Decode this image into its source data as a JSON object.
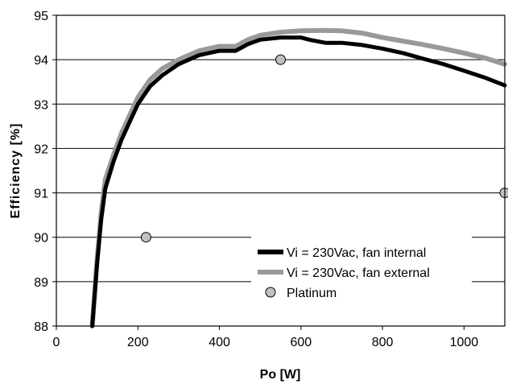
{
  "chart_data": {
    "type": "line",
    "xlabel": "Po [W]",
    "ylabel": "Efficiency [%]",
    "xlim": [
      0,
      1100
    ],
    "ylim": [
      88,
      95
    ],
    "xticks": [
      "0",
      "200",
      "400",
      "600",
      "800",
      "1000"
    ],
    "xtick_values": [
      0,
      200,
      400,
      600,
      800,
      1000
    ],
    "yticks": [
      "88",
      "89",
      "90",
      "91",
      "92",
      "93",
      "94",
      "95"
    ],
    "ytick_values": [
      88,
      89,
      90,
      91,
      92,
      93,
      94,
      95
    ],
    "grid": "horizontal",
    "legend_position": "bottom-right",
    "series": [
      {
        "name": "Vi = 230Vac, fan internal",
        "kind": "line",
        "color": "#000000",
        "x": [
          88,
          100,
          110,
          120,
          140,
          160,
          180,
          200,
          230,
          260,
          300,
          350,
          400,
          440,
          470,
          500,
          550,
          600,
          620,
          660,
          700,
          750,
          800,
          850,
          900,
          950,
          1000,
          1050,
          1100
        ],
        "y": [
          88.0,
          89.4,
          90.4,
          91.1,
          91.7,
          92.2,
          92.6,
          93.0,
          93.4,
          93.65,
          93.9,
          94.1,
          94.2,
          94.2,
          94.35,
          94.45,
          94.5,
          94.5,
          94.45,
          94.38,
          94.38,
          94.33,
          94.25,
          94.15,
          94.02,
          93.9,
          93.75,
          93.6,
          93.42
        ]
      },
      {
        "name": "Vi = 230Vac, fan external",
        "kind": "line",
        "color": "#999999",
        "x": [
          88,
          100,
          110,
          120,
          140,
          160,
          180,
          200,
          230,
          260,
          300,
          350,
          400,
          440,
          470,
          500,
          550,
          600,
          650,
          700,
          750,
          800,
          850,
          900,
          950,
          1000,
          1050,
          1100
        ],
        "y": [
          88.0,
          89.5,
          90.55,
          91.3,
          91.85,
          92.35,
          92.75,
          93.15,
          93.55,
          93.8,
          94.0,
          94.2,
          94.3,
          94.3,
          94.45,
          94.55,
          94.62,
          94.65,
          94.66,
          94.65,
          94.6,
          94.5,
          94.42,
          94.34,
          94.25,
          94.15,
          94.04,
          93.9
        ]
      },
      {
        "name": "Platinum",
        "kind": "points",
        "color": "#c0c0c0",
        "x": [
          220,
          550,
          1100
        ],
        "y": [
          90,
          94,
          91
        ]
      }
    ]
  }
}
